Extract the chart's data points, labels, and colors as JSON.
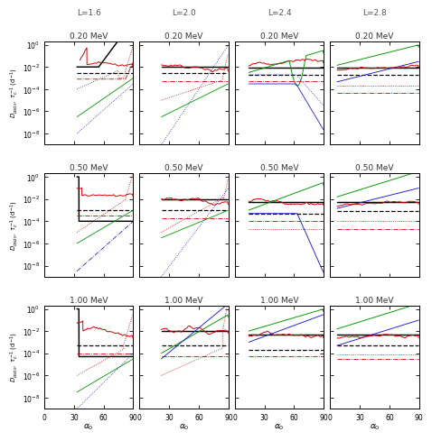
{
  "col_labels": [
    "L=1.6",
    "L=2.0",
    "L=2.4",
    "L=2.8"
  ],
  "row_labels": [
    "0.20 MeV",
    "0.50 MeV",
    "1.00 MeV"
  ],
  "colors": {
    "k": "#000000",
    "r": "#cc0000",
    "b": "#2222cc",
    "g": "#009900"
  },
  "ylim_lo": 1e-09,
  "ylim_hi": 2.0,
  "xlim_lo": 0,
  "xlim_hi": 90,
  "loss_cone": [
    33,
    22,
    14,
    7
  ],
  "background": "#ffffff"
}
